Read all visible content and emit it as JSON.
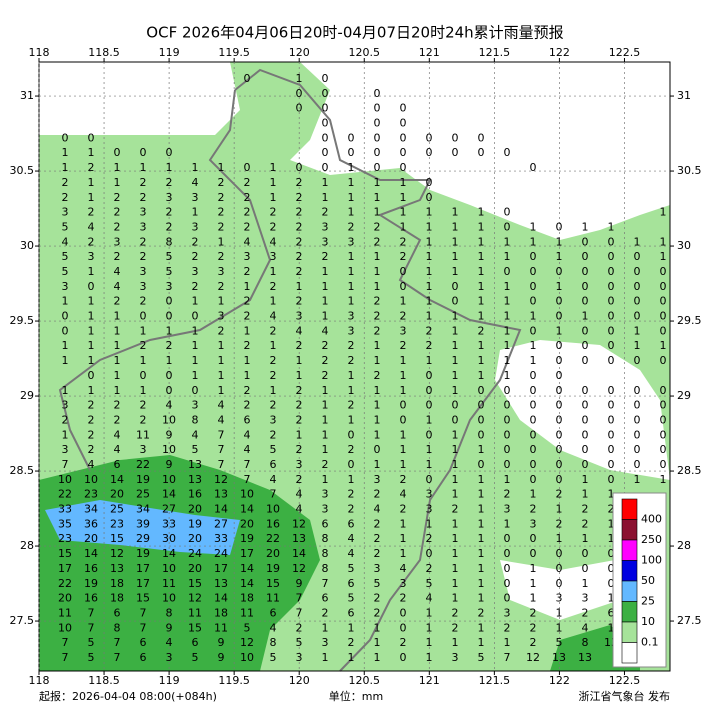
{
  "title": "OCF 2026年04月06日20时-04月07日20时24h累计雨量预报",
  "map": {
    "xlim": [
      118,
      122.85
    ],
    "ylim": [
      27.167,
      31.227
    ],
    "xticks": [
      118,
      118.5,
      119,
      119.5,
      120,
      120.5,
      121,
      121.5,
      122,
      122.5
    ],
    "yticks": [
      31,
      30.5,
      30,
      29.5,
      29,
      28.5,
      28,
      27.5
    ],
    "rows": [
      [
        null,
        null,
        null,
        null,
        null,
        null,
        null,
        0,
        null,
        1,
        0
      ],
      [
        null,
        null,
        null,
        null,
        null,
        null,
        null,
        null,
        null,
        0,
        0,
        null,
        0
      ],
      [
        null,
        null,
        null,
        null,
        null,
        null,
        null,
        null,
        null,
        0,
        0,
        null,
        0,
        0
      ],
      [
        null,
        null,
        null,
        null,
        null,
        null,
        null,
        null,
        null,
        null,
        0,
        null,
        0,
        0
      ],
      [
        0,
        0,
        null,
        null,
        null,
        null,
        null,
        null,
        null,
        null,
        0,
        0,
        0,
        0,
        0,
        0,
        0
      ],
      [
        1,
        1,
        0,
        0,
        0,
        null,
        null,
        null,
        null,
        null,
        0,
        0,
        0,
        0,
        0,
        0,
        0,
        0
      ],
      [
        1,
        2,
        1,
        1,
        1,
        1,
        1,
        0,
        1,
        0,
        0,
        1,
        0,
        0,
        null,
        null,
        null,
        null,
        0
      ],
      [
        2,
        1,
        1,
        2,
        2,
        4,
        2,
        2,
        1,
        2,
        1,
        1,
        1,
        1,
        0
      ],
      [
        2,
        1,
        2,
        2,
        3,
        3,
        2,
        2,
        1,
        2,
        1,
        1,
        1,
        1,
        0
      ],
      [
        3,
        2,
        2,
        3,
        2,
        1,
        2,
        2,
        2,
        2,
        2,
        1,
        1,
        1,
        1,
        1,
        1,
        0,
        null,
        null,
        null,
        null,
        null,
        1
      ],
      [
        5,
        4,
        2,
        3,
        2,
        3,
        2,
        2,
        2,
        2,
        3,
        2,
        2,
        1,
        1,
        1,
        1,
        0,
        1,
        0,
        1,
        1
      ],
      [
        4,
        2,
        3,
        2,
        8,
        2,
        1,
        4,
        4,
        2,
        3,
        3,
        2,
        2,
        1,
        1,
        1,
        1,
        1,
        1,
        0,
        0,
        1,
        1
      ],
      [
        5,
        3,
        2,
        2,
        5,
        2,
        2,
        3,
        3,
        2,
        2,
        1,
        1,
        2,
        1,
        1,
        1,
        1,
        0,
        1,
        0,
        0,
        0,
        1
      ],
      [
        5,
        1,
        4,
        3,
        5,
        3,
        3,
        2,
        1,
        2,
        1,
        1,
        1,
        0,
        1,
        1,
        1,
        0,
        0,
        0,
        0,
        0,
        0,
        0
      ],
      [
        3,
        0,
        4,
        3,
        3,
        2,
        2,
        1,
        2,
        1,
        1,
        1,
        1,
        0,
        1,
        0,
        1,
        1,
        0,
        1,
        0,
        0,
        0,
        0
      ],
      [
        1,
        1,
        2,
        2,
        0,
        1,
        1,
        2,
        1,
        2,
        1,
        1,
        2,
        1,
        1,
        0,
        1,
        1,
        0,
        0,
        0,
        0,
        0,
        0
      ],
      [
        0,
        1,
        1,
        0,
        0,
        0,
        3,
        2,
        4,
        3,
        1,
        3,
        2,
        2,
        1,
        1,
        1,
        1,
        1,
        0,
        1,
        0,
        0,
        0
      ],
      [
        0,
        1,
        1,
        1,
        1,
        1,
        2,
        1,
        2,
        4,
        4,
        3,
        2,
        3,
        2,
        1,
        2,
        1,
        0,
        1,
        0,
        0,
        1,
        0
      ],
      [
        1,
        1,
        1,
        2,
        2,
        1,
        1,
        2,
        1,
        2,
        2,
        2,
        1,
        2,
        2,
        1,
        1,
        1,
        1,
        0,
        0,
        0,
        1,
        1
      ],
      [
        1,
        1,
        1,
        1,
        1,
        1,
        1,
        1,
        2,
        1,
        2,
        2,
        1,
        1,
        1,
        1,
        1,
        1,
        1,
        0,
        0,
        0,
        0,
        0
      ],
      [
        null,
        0,
        1,
        0,
        0,
        1,
        1,
        1,
        2,
        1,
        2,
        1,
        2,
        1,
        0,
        1,
        1,
        1,
        0,
        0
      ],
      [
        1,
        1,
        1,
        1,
        0,
        0,
        1,
        2,
        1,
        2,
        1,
        1,
        1,
        1,
        0,
        1,
        0,
        0,
        0,
        0,
        0,
        0,
        0,
        0
      ],
      [
        3,
        2,
        2,
        2,
        4,
        3,
        4,
        2,
        2,
        2,
        1,
        2,
        1,
        0,
        0,
        0,
        0,
        0,
        0,
        0,
        0,
        0,
        0,
        0
      ],
      [
        2,
        2,
        2,
        2,
        10,
        8,
        4,
        6,
        3,
        2,
        1,
        1,
        1,
        0,
        1,
        0,
        0,
        0,
        0,
        0,
        0,
        0,
        0,
        0
      ],
      [
        1,
        2,
        4,
        11,
        9,
        4,
        7,
        4,
        2,
        1,
        1,
        0,
        1,
        1,
        0,
        1,
        0,
        0,
        0,
        0,
        0,
        0,
        0,
        0
      ],
      [
        3,
        2,
        4,
        3,
        10,
        5,
        7,
        4,
        5,
        2,
        1,
        2,
        0,
        1,
        1,
        1,
        1,
        0,
        0,
        0,
        0,
        0,
        0,
        0
      ],
      [
        7,
        4,
        6,
        22,
        9,
        13,
        7,
        7,
        6,
        3,
        2,
        0,
        1,
        1,
        1,
        1,
        0,
        0,
        0,
        0,
        0,
        0,
        0,
        0
      ],
      [
        10,
        10,
        14,
        19,
        10,
        13,
        12,
        7,
        4,
        2,
        1,
        1,
        3,
        2,
        0,
        1,
        1,
        1,
        0,
        0,
        1,
        0,
        1,
        1
      ],
      [
        22,
        23,
        20,
        25,
        14,
        16,
        13,
        10,
        7,
        4,
        3,
        2,
        2,
        4,
        3,
        1,
        1,
        2,
        1,
        2,
        1,
        1
      ],
      [
        33,
        34,
        25,
        34,
        27,
        20,
        14,
        14,
        10,
        4,
        3,
        2,
        4,
        2,
        3,
        2,
        1,
        3,
        2,
        1,
        2,
        2
      ],
      [
        35,
        36,
        23,
        39,
        33,
        19,
        27,
        20,
        16,
        12,
        6,
        6,
        2,
        1,
        1,
        1,
        1,
        1,
        3,
        2,
        2,
        1
      ],
      [
        23,
        20,
        15,
        29,
        30,
        20,
        33,
        19,
        22,
        13,
        8,
        4,
        2,
        1,
        2,
        1,
        1,
        0,
        0,
        1,
        1,
        1
      ],
      [
        15,
        14,
        12,
        19,
        14,
        24,
        24,
        17,
        20,
        14,
        8,
        4,
        2,
        1,
        0,
        1,
        1,
        0,
        0,
        0,
        0,
        0
      ],
      [
        17,
        16,
        13,
        17,
        10,
        20,
        17,
        14,
        19,
        12,
        8,
        5,
        3,
        4,
        2,
        1,
        1,
        0,
        1,
        0,
        0,
        0
      ],
      [
        22,
        19,
        18,
        17,
        11,
        15,
        13,
        14,
        15,
        9,
        7,
        6,
        5,
        3,
        5,
        1,
        1,
        0,
        1,
        0,
        1,
        0
      ],
      [
        20,
        16,
        18,
        15,
        10,
        12,
        14,
        18,
        11,
        7,
        6,
        5,
        2,
        2,
        4,
        1,
        1,
        0,
        1,
        3,
        3,
        1,
        1
      ],
      [
        11,
        7,
        6,
        7,
        8,
        11,
        18,
        11,
        6,
        7,
        2,
        6,
        2,
        0,
        1,
        2,
        2,
        3,
        2,
        1,
        2,
        6
      ],
      [
        10,
        7,
        8,
        7,
        9,
        15,
        11,
        5,
        4,
        2,
        1,
        1,
        1,
        0,
        1,
        2,
        1,
        2,
        2,
        1,
        4,
        1
      ],
      [
        7,
        5,
        7,
        6,
        4,
        6,
        9,
        12,
        8,
        5,
        3,
        2,
        1,
        2,
        1,
        1,
        1,
        1,
        2,
        5,
        8,
        13
      ],
      [
        7,
        5,
        7,
        6,
        3,
        5,
        9,
        10,
        5,
        3,
        1,
        1,
        1,
        0,
        1,
        3,
        5,
        7,
        12,
        13,
        13
      ]
    ]
  },
  "legend": {
    "colors": [
      "#ff0000",
      "#8b1030",
      "#ff00ff",
      "#0000e0",
      "#63b8ff",
      "#3cb043",
      "#a6e39a",
      "#ffffff"
    ],
    "labels": [
      "400",
      "250",
      "100",
      "50",
      "25",
      "10",
      "0.1"
    ]
  },
  "footer": {
    "issued": "起报：2026-04-04 08:00(+084h)",
    "unit": "单位：mm",
    "publisher": "浙江省气象台 发布"
  }
}
